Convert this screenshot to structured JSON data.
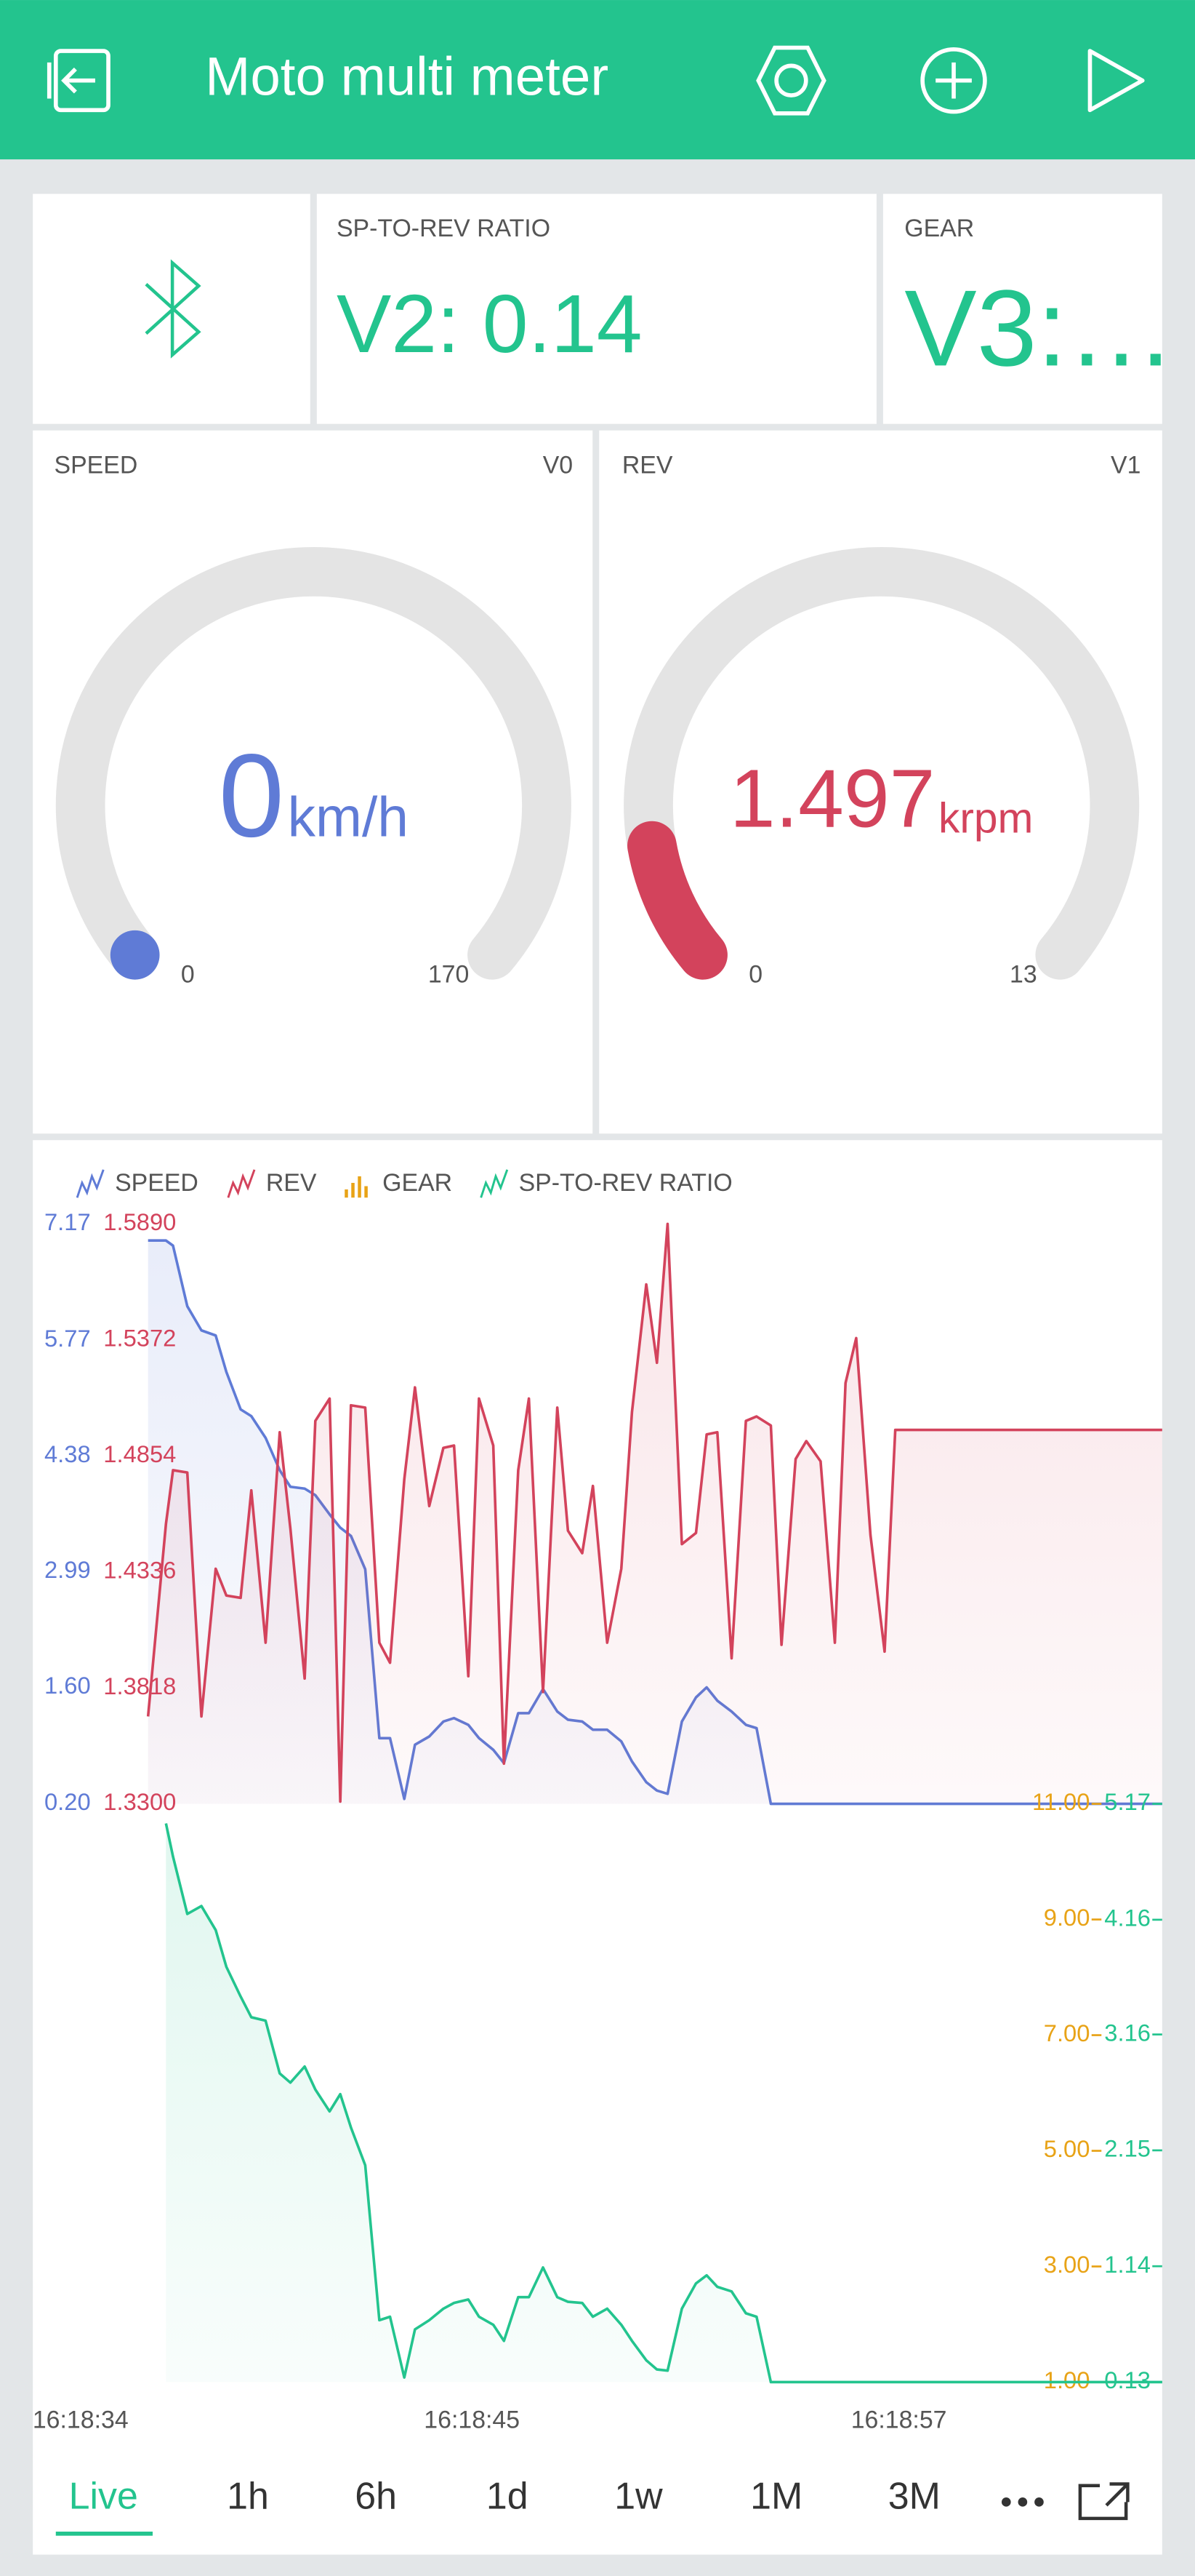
{
  "header": {
    "title": "Moto multi meter"
  },
  "widgets": {
    "ratio": {
      "label": "SP-TO-REV RATIO",
      "value": "V2: 0.14"
    },
    "gear": {
      "label": "GEAR",
      "value": "V3:…"
    }
  },
  "gauges": [
    {
      "label": "SPEED",
      "pin": "V0",
      "value": 0,
      "unit": "km/h",
      "min": 0,
      "max": 170,
      "color": "#5f7bd6"
    },
    {
      "label": "REV",
      "pin": "V1",
      "value": 1.497,
      "unit": "krpm",
      "min": 0,
      "max": 13,
      "color": "#d3435c"
    }
  ],
  "chart_data": {
    "type": "line",
    "x": [
      35.9,
      36.4,
      36.6,
      37.0,
      37.4,
      37.8,
      38.1,
      38.5,
      38.8,
      39.2,
      39.6,
      39.9,
      40.3,
      40.6,
      41.0,
      41.3,
      41.6,
      42.0,
      42.4,
      42.7,
      43.1,
      43.4,
      43.8,
      44.2,
      44.5,
      44.9,
      45.2,
      45.6,
      45.9,
      46.3,
      46.6,
      47.0,
      47.4,
      47.7,
      48.1,
      48.4,
      48.8,
      49.2,
      49.5,
      49.9,
      50.2,
      50.5,
      50.9,
      51.3,
      51.6,
      51.9,
      52.3,
      52.7,
      53.0,
      53.4,
      53.7,
      54.1,
      54.4,
      54.8,
      55.2,
      55.5,
      55.8,
      56.2,
      56.6,
      56.9,
      64.4
    ],
    "xlim": [
      32.66,
      64.4
    ],
    "xticks": [
      {
        "value": 34,
        "label": "16:18:34"
      },
      {
        "value": 45,
        "label": "16:18:45"
      },
      {
        "value": 57,
        "label": "16:18:57"
      }
    ],
    "series": [
      {
        "name": "SPEED",
        "color": "#5f7bd6",
        "ylim": [
          0.2,
          7.17
        ],
        "yticks": [
          {
            "value": 0.2,
            "label": "0.20"
          },
          {
            "value": 1.6,
            "label": "1.60"
          },
          2.99,
          4.38,
          5.77,
          7.17
        ],
        "values": [
          6.97,
          6.97,
          6.91,
          6.18,
          5.89,
          5.83,
          5.39,
          4.94,
          4.86,
          4.6,
          4.21,
          4.01,
          3.99,
          3.91,
          3.68,
          3.52,
          3.42,
          3.02,
          0.99,
          0.99,
          0.26,
          0.91,
          1.01,
          1.19,
          1.23,
          1.15,
          0.99,
          0.85,
          0.69,
          1.29,
          1.29,
          1.58,
          1.31,
          1.21,
          1.19,
          1.09,
          1.09,
          0.95,
          0.71,
          0.46,
          0.36,
          0.32,
          1.19,
          1.48,
          1.6,
          1.44,
          1.31,
          1.15,
          1.11,
          0.2,
          0.2,
          0.2,
          0.2,
          0.2,
          0.2,
          0.2,
          0.2,
          0.2,
          0.2,
          0.2,
          0.2
        ]
      },
      {
        "name": "REV",
        "color": "#d3435c",
        "ylim": [
          1.33,
          1.589
        ],
        "yticks": [
          {
            "value": 1.33,
            "label": "1.3300"
          },
          1.3818,
          1.4336,
          1.4854,
          1.5372,
          {
            "value": 1.589,
            "label": "1.5890"
          }
        ],
        "values": [
          1.369,
          1.455,
          1.479,
          1.478,
          1.369,
          1.435,
          1.423,
          1.422,
          1.47,
          1.402,
          1.496,
          1.453,
          1.386,
          1.501,
          1.511,
          1.331,
          1.508,
          1.507,
          1.402,
          1.393,
          1.475,
          1.516,
          1.463,
          1.489,
          1.49,
          1.387,
          1.511,
          1.49,
          1.348,
          1.479,
          1.511,
          1.38,
          1.507,
          1.452,
          1.442,
          1.472,
          1.402,
          1.435,
          1.505,
          1.562,
          1.527,
          1.589,
          1.446,
          1.451,
          1.495,
          1.496,
          1.395,
          1.501,
          1.503,
          1.499,
          1.401,
          1.484,
          1.492,
          1.483,
          1.402,
          1.518,
          1.538,
          1.45,
          1.398,
          1.497,
          1.497
        ]
      },
      {
        "name": "GEAR",
        "color": "#e8a317",
        "ylim": [
          1,
          11
        ],
        "yticks": [
          {
            "value": 1,
            "label": "1.00"
          },
          {
            "value": 3,
            "label": "3.00"
          },
          {
            "value": 5,
            "label": "5.00"
          },
          {
            "value": 7,
            "label": "7.00"
          },
          {
            "value": 9,
            "label": "9.00"
          },
          {
            "value": 11,
            "label": "11.00"
          }
        ],
        "values": [
          null,
          null,
          null,
          null,
          null,
          null,
          null,
          null,
          null,
          null,
          null,
          null,
          null,
          null,
          null,
          null,
          null,
          null,
          null,
          null,
          null,
          null,
          null,
          null,
          null,
          null,
          null,
          null,
          null,
          null,
          null,
          null,
          null,
          null,
          null,
          null,
          null,
          null,
          null,
          null,
          null,
          null,
          null,
          null,
          null,
          null,
          null,
          null,
          null,
          null,
          null,
          null,
          null,
          null,
          null,
          null,
          null,
          null,
          null,
          null,
          null
        ]
      },
      {
        "name": "SP-TO-REV RATIO",
        "color": "#23c48e",
        "ylim": [
          0.13,
          5.17
        ],
        "yticks": [
          0.13,
          1.14,
          2.15,
          3.16,
          4.16,
          5.17
        ],
        "values": [
          null,
          5.0,
          4.71,
          4.21,
          4.28,
          4.07,
          3.75,
          3.49,
          3.31,
          3.28,
          2.82,
          2.74,
          2.88,
          2.68,
          2.49,
          2.64,
          2.35,
          2.02,
          0.67,
          0.7,
          0.17,
          0.59,
          0.67,
          0.77,
          0.82,
          0.85,
          0.7,
          0.63,
          0.49,
          0.87,
          0.87,
          1.13,
          0.87,
          0.83,
          0.82,
          0.7,
          0.77,
          0.63,
          0.49,
          0.32,
          0.24,
          0.23,
          0.77,
          0.99,
          1.06,
          0.96,
          0.92,
          0.73,
          0.7,
          0.13,
          0.13,
          0.13,
          0.13,
          0.13,
          0.13,
          0.13,
          0.13,
          0.13,
          0.13,
          0.13,
          0.13
        ]
      }
    ]
  },
  "tabs": [
    "Live",
    "1h",
    "6h",
    "1d",
    "1w",
    "1M",
    "3M"
  ]
}
